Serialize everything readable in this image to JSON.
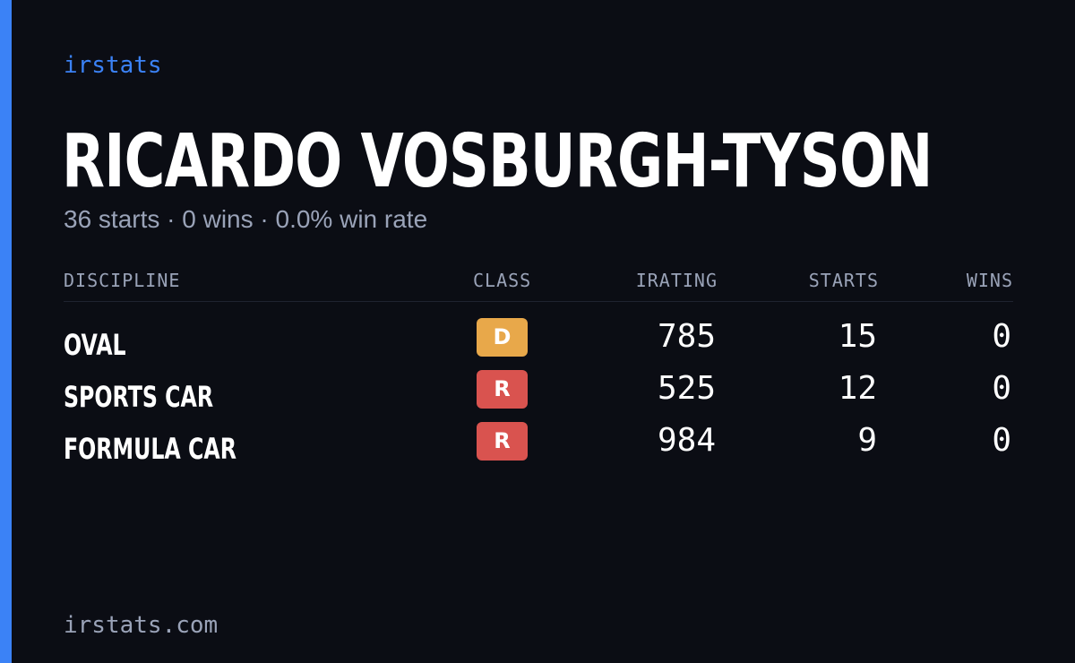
{
  "brand": "irstats",
  "driver": {
    "name": "RICARDO VOSBURGH-TYSON",
    "summary": "36 starts · 0 wins · 0.0% win rate"
  },
  "table": {
    "headers": {
      "discipline": "DISCIPLINE",
      "class": "CLASS",
      "irating": "IRATING",
      "starts": "STARTS",
      "wins": "WINS"
    },
    "rows": [
      {
        "discipline": "OVAL",
        "class": "D",
        "class_color": "#e8a84a",
        "irating": "785",
        "starts": "15",
        "wins": "0"
      },
      {
        "discipline": "SPORTS CAR",
        "class": "R",
        "class_color": "#d9534f",
        "irating": "525",
        "starts": "12",
        "wins": "0"
      },
      {
        "discipline": "FORMULA CAR",
        "class": "R",
        "class_color": "#d9534f",
        "irating": "984",
        "starts": "9",
        "wins": "0"
      }
    ]
  },
  "footer": {
    "domain": "irstats.com"
  },
  "colors": {
    "background": "#0b0d14",
    "accent": "#3b82f6",
    "muted_text": "#9aa3b8",
    "class_d": "#e8a84a",
    "class_r": "#d9534f"
  }
}
